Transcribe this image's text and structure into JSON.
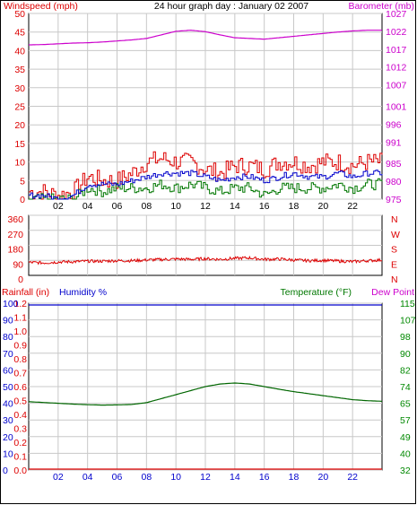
{
  "header": {
    "left_title": "Windspeed (mph)",
    "center_title": "24 hour graph day : January 02 2007",
    "right_title": "Barometer (mb)"
  },
  "bottom_header": {
    "rainfall": "Rainfall (in)",
    "humidity": "Humidity %",
    "temperature": "Temperature (°F)",
    "dewpoint": "Dew Point"
  },
  "colors": {
    "wind": "#dd0000",
    "wind_avg": "#0000cc",
    "wind_low": "#007700",
    "barometer": "#cc00cc",
    "direction": "#dd0000",
    "temperature": "#006600",
    "humidity": "#0000cc",
    "rain": "#dd0000",
    "grid": "#c8c8c8",
    "axis_red": "#dd0000",
    "axis_magenta": "#cc00cc",
    "axis_blue": "#0000cc",
    "axis_green": "#008800"
  },
  "chart_data": [
    {
      "type": "line",
      "title": "24 hour graph day : January 02 2007",
      "ylabel": "Windspeed (mph)",
      "y2label": "Barometer (mb)",
      "x_ticks": [
        "02",
        "04",
        "06",
        "08",
        "10",
        "12",
        "14",
        "16",
        "18",
        "20",
        "22"
      ],
      "y_ticks": [
        "0",
        "5",
        "10",
        "15",
        "20",
        "25",
        "30",
        "35",
        "40",
        "45",
        "50"
      ],
      "y2_ticks": [
        "975",
        "980",
        "985",
        "991",
        "996",
        "1001",
        "1007",
        "1012",
        "1017",
        "1022",
        "1027"
      ],
      "ylim": [
        0,
        50
      ],
      "y2lim": [
        975,
        1027
      ],
      "x": [
        0,
        1,
        2,
        3,
        4,
        5,
        6,
        7,
        8,
        9,
        10,
        11,
        12,
        13,
        14,
        15,
        16,
        17,
        18,
        19,
        20,
        21,
        22,
        23,
        24
      ],
      "series": [
        {
          "name": "Barometer (mb)",
          "axis": "right",
          "values": [
            1018.2,
            1018.3,
            1018.5,
            1018.7,
            1018.8,
            1019.0,
            1019.3,
            1019.6,
            1020.0,
            1021.0,
            1022.0,
            1022.3,
            1021.9,
            1021.0,
            1020.2,
            1020.0,
            1019.8,
            1020.2,
            1020.6,
            1021.0,
            1021.4,
            1021.8,
            1022.1,
            1022.3,
            1022.3
          ]
        },
        {
          "name": "Windspeed (mph)",
          "axis": "left",
          "values": [
            2,
            2,
            1,
            2,
            6,
            5,
            5,
            7,
            10,
            11,
            10,
            10,
            8,
            7,
            9,
            9,
            8,
            10,
            10,
            9,
            10,
            10,
            9,
            10,
            10
          ]
        },
        {
          "name": "Average windspeed",
          "axis": "left",
          "values": [
            1,
            1,
            0,
            1,
            4,
            4,
            4,
            5,
            6,
            7,
            7,
            7,
            6,
            5,
            6,
            6,
            5,
            6,
            7,
            6,
            6,
            7,
            6,
            7,
            7
          ]
        },
        {
          "name": "Wind low",
          "axis": "left",
          "values": [
            0,
            0,
            0,
            0,
            3,
            2,
            3,
            3,
            3,
            4,
            3,
            4,
            3,
            2,
            3,
            3,
            1,
            3,
            3,
            3,
            3,
            4,
            3,
            4,
            4
          ]
        }
      ]
    },
    {
      "type": "line",
      "title": "",
      "y_ticks": [
        "360",
        "270",
        "180",
        "90",
        "0"
      ],
      "y2_ticks": [
        "N",
        "W",
        "S",
        "E",
        "N"
      ],
      "ylim": [
        0,
        360
      ],
      "x": [
        0,
        1,
        2,
        3,
        4,
        5,
        6,
        7,
        8,
        9,
        10,
        11,
        12,
        13,
        14,
        15,
        16,
        17,
        18,
        19,
        20,
        21,
        22,
        23,
        24
      ],
      "series": [
        {
          "name": "Wind direction",
          "values": [
            78,
            75,
            80,
            82,
            85,
            85,
            88,
            88,
            92,
            95,
            98,
            96,
            100,
            96,
            102,
            105,
            96,
            98,
            92,
            88,
            90,
            86,
            82,
            88,
            92
          ]
        }
      ]
    },
    {
      "type": "line",
      "title": "",
      "x_ticks": [
        "02",
        "04",
        "06",
        "08",
        "10",
        "12",
        "14",
        "16",
        "18",
        "20",
        "22"
      ],
      "y_ticks_rain": [
        "0.0",
        "0.1",
        "0.2",
        "0.3",
        "0.4",
        "0.5",
        "0.6",
        "0.7",
        "0.8",
        "0.9",
        "1.0",
        "1.1",
        "1.2"
      ],
      "y_ticks_humidity": [
        "0",
        "10",
        "20",
        "30",
        "40",
        "50",
        "60",
        "70",
        "80",
        "90",
        "100"
      ],
      "y2_ticks": [
        "32",
        "40",
        "49",
        "57",
        "65",
        "74",
        "82",
        "90",
        "98",
        "107",
        "115"
      ],
      "ylim": [
        0,
        100
      ],
      "y2lim": [
        32,
        115
      ],
      "x": [
        0,
        1,
        2,
        3,
        4,
        5,
        6,
        7,
        8,
        9,
        10,
        11,
        12,
        13,
        14,
        15,
        16,
        17,
        18,
        19,
        20,
        21,
        22,
        23,
        24
      ],
      "series": [
        {
          "name": "Temperature (°F)",
          "axis": "right",
          "values": [
            66,
            65.6,
            65.2,
            64.8,
            64.5,
            64.3,
            64.4,
            64.6,
            65.5,
            67.5,
            69.5,
            71.5,
            73.5,
            74.8,
            75.3,
            74.8,
            73.5,
            72.2,
            71,
            70,
            69,
            68,
            67,
            66.5,
            66.2
          ]
        },
        {
          "name": "Humidity %",
          "axis": "left",
          "values": [
            100,
            100,
            100,
            100,
            100,
            100,
            100,
            100,
            100,
            100,
            100,
            100,
            100,
            100,
            100,
            100,
            100,
            100,
            100,
            100,
            100,
            100,
            100,
            100,
            100
          ]
        },
        {
          "name": "Rainfall (in)",
          "axis": "left",
          "values": [
            0,
            0,
            0,
            0,
            0,
            0,
            0,
            0,
            0,
            0,
            0,
            0,
            0,
            0,
            0,
            0,
            0,
            0,
            0,
            0,
            0,
            0,
            0,
            0,
            0
          ]
        }
      ]
    }
  ]
}
